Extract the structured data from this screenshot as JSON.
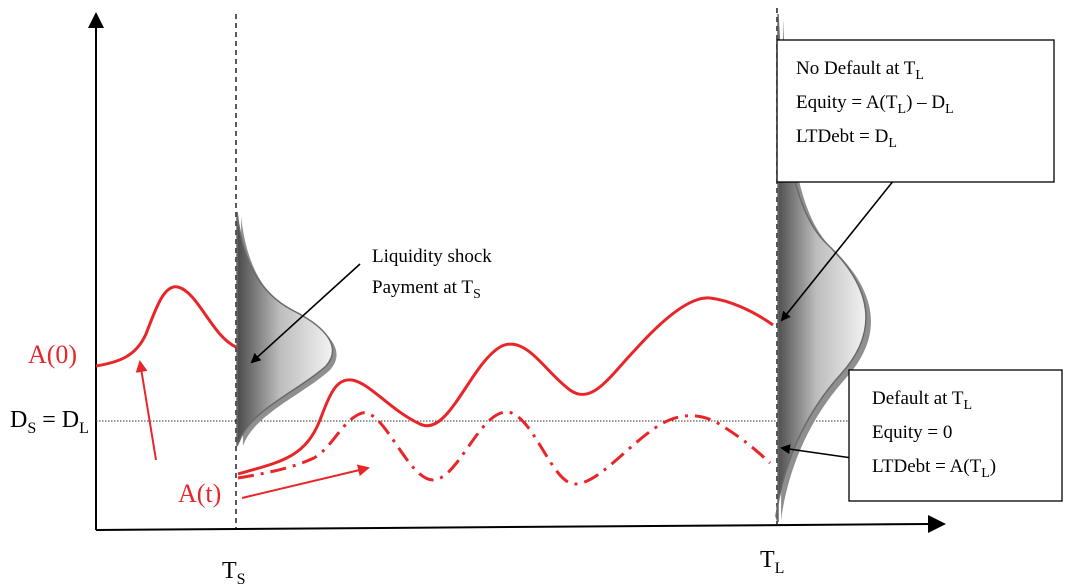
{
  "labels": {
    "a0": "A(0)",
    "at": "A(t)",
    "ds_dl": {
      "base1": "D",
      "sub1": "S",
      "mid": " = D",
      "sub2": "L"
    },
    "ts": {
      "base": "T",
      "sub": "S"
    },
    "tl": {
      "base": "T",
      "sub": "L"
    }
  },
  "liquidity_callout": {
    "line1": "Liquidity shock",
    "line2_base": "Payment at T",
    "line2_sub": "S"
  },
  "no_default_box": {
    "line1_base": "No Default at T",
    "line1_sub": "L",
    "line2_a": "Equity = A(T",
    "line2_sub1": "L",
    "line2_b": ") – D",
    "line2_sub2": "L",
    "line3_base": "LTDebt = D",
    "line3_sub": "L"
  },
  "default_box": {
    "line1_base": "Default at T",
    "line1_sub": "L",
    "line2": "Equity = 0",
    "line3_a": "LTDebt = A(T",
    "line3_sub": "L",
    "line3_b": ")"
  },
  "colors": {
    "path": "#e8262a",
    "axis": "#000000",
    "distribution_dark": "#5f5f5f",
    "distribution_light": "#f2f2f2"
  }
}
